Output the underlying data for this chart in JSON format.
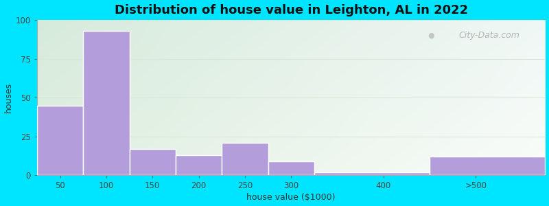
{
  "title": "Distribution of house value in Leighton, AL in 2022",
  "xlabel": "house value ($1000)",
  "ylabel": "houses",
  "bar_labels": [
    "50",
    "100",
    "150",
    "200",
    "250",
    "300",
    "400",
    ">500"
  ],
  "bar_values": [
    45,
    93,
    17,
    13,
    21,
    9,
    2,
    12
  ],
  "bar_color": "#b39ddb",
  "bar_edge_color": "#ffffff",
  "ylim": [
    0,
    100
  ],
  "yticks": [
    0,
    25,
    50,
    75,
    100
  ],
  "bg_outer": "#00e5ff",
  "bg_grad_topleft": "#dff0df",
  "bg_grad_bottomright": "#e8f5f0",
  "grid_color": "#d8e8d8",
  "title_fontsize": 13,
  "label_fontsize": 9,
  "tick_fontsize": 8.5,
  "watermark_text": "City-Data.com",
  "bar_edges": [
    25,
    75,
    125,
    175,
    225,
    275,
    325,
    450,
    575
  ],
  "x_tick_positions": [
    50,
    100,
    150,
    200,
    250,
    300,
    400,
    500
  ]
}
